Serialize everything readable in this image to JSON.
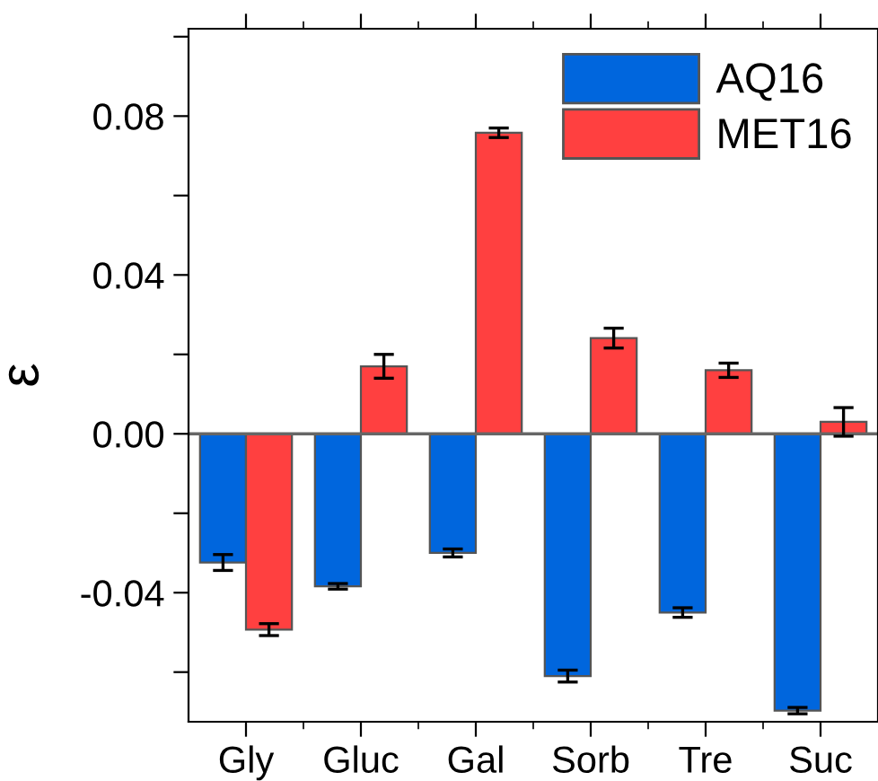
{
  "chart_data": {
    "type": "bar",
    "ylabel": "ε",
    "categories": [
      "Gly",
      "Gluc",
      "Gal",
      "Sorb",
      "Tre",
      "Suc"
    ],
    "series": [
      {
        "name": "AQ16",
        "color": "#0066dd",
        "values": [
          -0.0324,
          -0.0384,
          -0.03,
          -0.061,
          -0.045,
          -0.0697
        ],
        "errors": [
          0.002,
          0.0007,
          0.001,
          0.0015,
          0.0012,
          0.0008
        ]
      },
      {
        "name": "MET16",
        "color": "#ff4040",
        "values": [
          -0.0493,
          0.017,
          0.0758,
          0.0241,
          0.016,
          0.003
        ],
        "errors": [
          0.0015,
          0.003,
          0.0012,
          0.0025,
          0.0018,
          0.0036
        ]
      }
    ],
    "ylim": [
      -0.0725,
      0.102
    ],
    "yticks": [
      {
        "value": -0.06,
        "label": null
      },
      {
        "value": -0.04,
        "label": "-0.04"
      },
      {
        "value": -0.02,
        "label": null
      },
      {
        "value": 0.0,
        "label": "0.00"
      },
      {
        "value": 0.02,
        "label": null
      },
      {
        "value": 0.04,
        "label": "0.04"
      },
      {
        "value": 0.06,
        "label": null
      },
      {
        "value": 0.08,
        "label": "0.08"
      },
      {
        "value": 0.1,
        "label": null
      }
    ],
    "ref_lines": [
      {
        "axis": "y",
        "value": 0.0,
        "color": "#666666"
      }
    ],
    "legend": "top right",
    "grid": false
  }
}
